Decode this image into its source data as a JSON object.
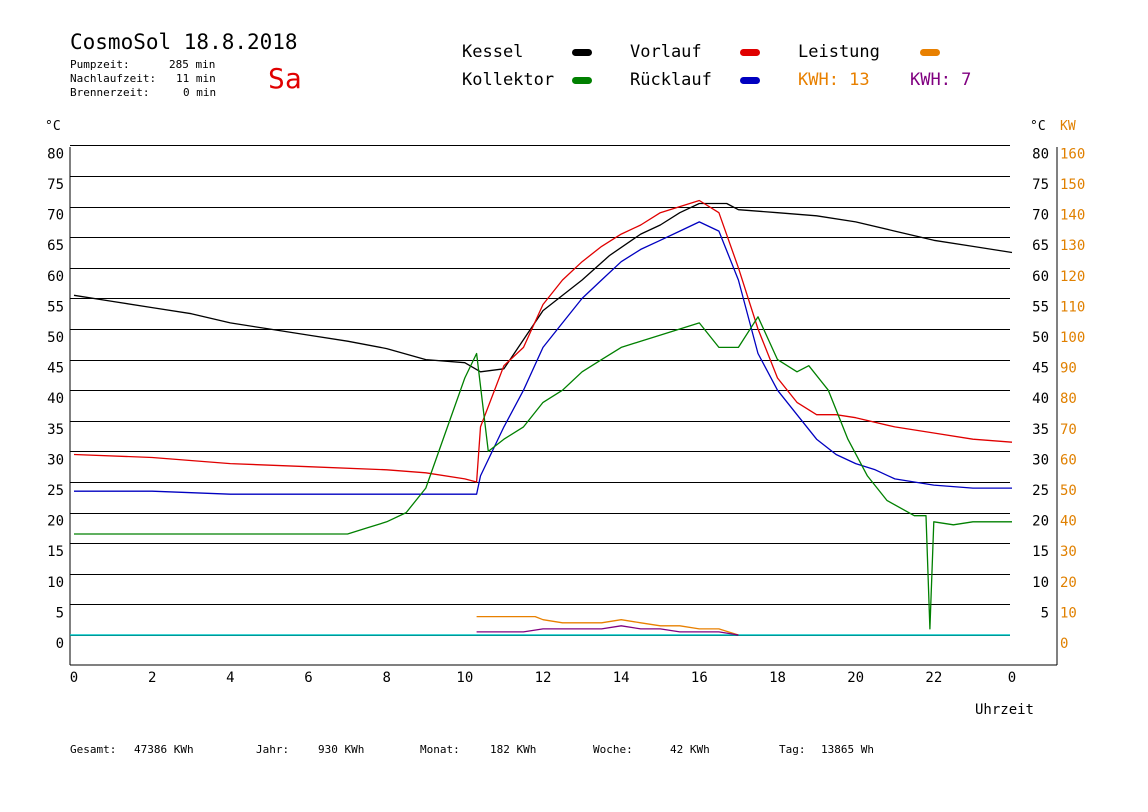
{
  "header": {
    "title": "CosmoSol 18.8.2018",
    "day": "Sa",
    "pumpzeit_label": "Pumpzeit:",
    "pumpzeit_value": "285 min",
    "nachlaufzeit_label": "Nachlaufzeit:",
    "nachlaufzeit_value": "11 min",
    "brennerzeit_label": "Brennerzeit:",
    "brennerzeit_value": "0 min"
  },
  "legend": {
    "kessel": "Kessel",
    "kollektor": "Kollektor",
    "vorlauf": "Vorlauf",
    "ruecklauf": "Rücklauf",
    "leistung": "Leistung",
    "kwh_a": "KWH: 13",
    "kwh_b": "KWH: 7"
  },
  "colors": {
    "kessel": "#000000",
    "vorlauf": "#e00000",
    "kollektor": "#008000",
    "ruecklauf": "#0000c0",
    "leistung": "#e88000",
    "kwh_b": "#800080",
    "baseline": "#00c8c8",
    "kw_axis": "#e08000"
  },
  "footer": {
    "gesamt_label": "Gesamt:",
    "gesamt_value": "47386 KWh",
    "jahr_label": "Jahr:",
    "jahr_value": "930 KWh",
    "monat_label": "Monat:",
    "monat_value": "182 KWh",
    "woche_label": "Woche:",
    "woche_value": "42 KWh",
    "tag_label": "Tag:",
    "tag_value": "13865 Wh"
  },
  "chart_data": {
    "type": "line",
    "xlabel": "Uhrzeit",
    "ylabel_left": "°C",
    "ylabel_right": "°C",
    "ylabel_right2": "KW",
    "xlim": [
      0,
      24
    ],
    "ylim": [
      0,
      80
    ],
    "ylim_right2": [
      0,
      160
    ],
    "x_ticks": [
      "0",
      "2",
      "4",
      "6",
      "8",
      "10",
      "12",
      "14",
      "16",
      "18",
      "20",
      "22",
      "0"
    ],
    "y_ticks": [
      "0",
      "5",
      "10",
      "15",
      "20",
      "25",
      "30",
      "35",
      "40",
      "45",
      "50",
      "55",
      "60",
      "65",
      "70",
      "75",
      "80"
    ],
    "y2_ticks": [
      "0",
      "10",
      "20",
      "30",
      "40",
      "50",
      "60",
      "70",
      "80",
      "90",
      "100",
      "110",
      "120",
      "130",
      "140",
      "150",
      "160"
    ],
    "grid": "horizontal",
    "legend_position": "top",
    "series": [
      {
        "name": "Kessel",
        "color": "#000000",
        "x": [
          0,
          1,
          2,
          3,
          4,
          5,
          6,
          7,
          8,
          9,
          10,
          10.4,
          11,
          12,
          13,
          13.7,
          14.5,
          15,
          15.5,
          16,
          16.7,
          17,
          18,
          19,
          20,
          21,
          22,
          23,
          24
        ],
        "y": [
          55.5,
          54.5,
          53.5,
          52.5,
          51,
          50,
          49,
          48,
          46.8,
          45,
          44.5,
          43,
          43.5,
          53,
          58,
          62,
          65.5,
          67,
          69,
          70.5,
          70.5,
          69.5,
          69,
          68.5,
          67.5,
          66,
          64.5,
          63.5,
          62.5
        ]
      },
      {
        "name": "Kollektor",
        "color": "#008000",
        "x": [
          0,
          1,
          2,
          3,
          4,
          5,
          6,
          7,
          7.5,
          8,
          8.5,
          9,
          9.5,
          10,
          10.3,
          10.6,
          11,
          11.5,
          12,
          12.5,
          13,
          13.5,
          14,
          14.5,
          15,
          15.5,
          16,
          16.5,
          17,
          17.5,
          18,
          18.5,
          18.8,
          19.3,
          19.8,
          20.3,
          20.8,
          21.5,
          21.8,
          21.9,
          22,
          22.5,
          23,
          24
        ],
        "y": [
          16.5,
          16.5,
          16.5,
          16.5,
          16.5,
          16.5,
          16.5,
          16.5,
          17.5,
          18.5,
          20,
          24,
          33,
          42,
          46,
          30,
          32,
          34,
          38,
          40,
          43,
          45,
          47,
          48,
          49,
          50,
          51,
          47,
          47,
          52,
          45,
          43,
          44,
          40,
          32,
          26,
          22,
          19.5,
          19.5,
          1,
          18.5,
          18,
          18.5,
          18.5
        ]
      },
      {
        "name": "Vorlauf",
        "color": "#e00000",
        "x": [
          0,
          2,
          4,
          6,
          8,
          9,
          10,
          10.3,
          10.4,
          11,
          11.5,
          12,
          12.5,
          13,
          13.5,
          14,
          14.5,
          15,
          15.5,
          16,
          16.5,
          17,
          17.5,
          18,
          18.5,
          19,
          19.5,
          20,
          21,
          22,
          23,
          24
        ],
        "y": [
          29.5,
          29,
          28,
          27.5,
          27,
          26.5,
          25.5,
          25,
          34,
          44,
          47,
          54,
          58,
          61,
          63.5,
          65.5,
          67,
          69,
          70,
          71,
          69,
          60,
          50,
          42,
          38,
          36,
          36,
          35.5,
          34,
          33,
          32,
          31.5
        ]
      },
      {
        "name": "Rücklauf",
        "color": "#0000c0",
        "x": [
          0,
          2,
          4,
          6,
          8,
          9,
          10,
          10.3,
          10.4,
          11,
          11.5,
          12,
          12.5,
          13,
          13.5,
          14,
          14.5,
          15,
          15.5,
          16,
          16.5,
          17,
          17.5,
          18,
          18.5,
          19,
          19.5,
          20,
          20.5,
          21,
          22,
          23,
          24
        ],
        "y": [
          23.5,
          23.5,
          23,
          23,
          23,
          23,
          23,
          23,
          26,
          34,
          40,
          47,
          51,
          55,
          58,
          61,
          63,
          64.5,
          66,
          67.5,
          66,
          58,
          46,
          40,
          36,
          32,
          29.5,
          28,
          27,
          25.5,
          24.5,
          24,
          24
        ]
      },
      {
        "name": "Leistung",
        "color": "#e88000",
        "x": [
          10.3,
          10.8,
          11.3,
          11.8,
          12,
          12.5,
          13,
          13.5,
          14,
          14.5,
          15,
          15.5,
          16,
          16.5,
          17
        ],
        "y": [
          3,
          3,
          3,
          3,
          2.5,
          2,
          2,
          2,
          2.5,
          2,
          1.5,
          1.5,
          1,
          1,
          0
        ]
      },
      {
        "name": "KWH: 7",
        "color": "#800080",
        "x": [
          10.3,
          11,
          11.5,
          12,
          12.5,
          13,
          13.5,
          14,
          14.5,
          15,
          15.5,
          16,
          16.5,
          17
        ],
        "y": [
          0.5,
          0.5,
          0.5,
          1,
          1,
          1,
          1,
          1.5,
          1,
          1,
          0.5,
          0.5,
          0.5,
          0
        ]
      }
    ]
  }
}
